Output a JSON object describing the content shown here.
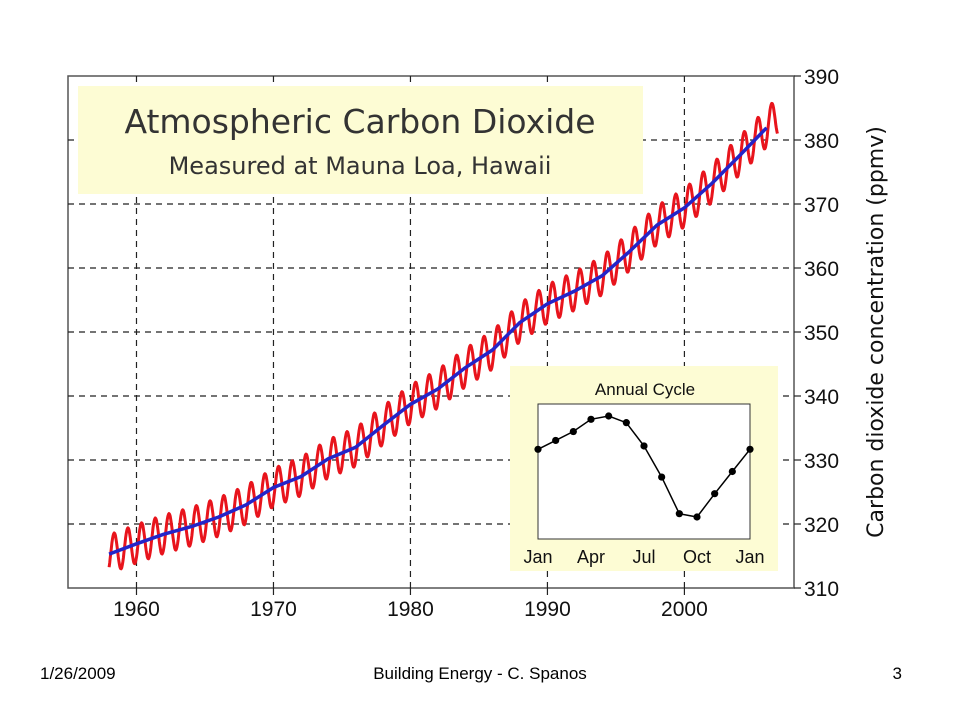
{
  "footer": {
    "date": "1/26/2009",
    "center": "Building Energy - C. Spanos",
    "page": "3"
  },
  "chart_data": [
    {
      "type": "line",
      "title": "Atmospheric Carbon Dioxide",
      "subtitle": "Measured at Mauna Loa, Hawaii",
      "xlabel": "",
      "ylabel": "Carbon dioxide concentration (ppmv)",
      "xlim": [
        1955,
        2008
      ],
      "ylim": [
        310,
        390
      ],
      "x_ticks": [
        "1960",
        "1970",
        "1980",
        "1990",
        "2000"
      ],
      "y_ticks": [
        "310",
        "320",
        "330",
        "340",
        "350",
        "360",
        "370",
        "380",
        "390"
      ],
      "grid": true,
      "colors": {
        "monthly": "#e8141c",
        "annual": "#2424c8",
        "title_box": "#fdfcd4"
      },
      "series": [
        {
          "x": [
            1958,
            1960,
            1962,
            1964,
            1966,
            1968,
            1970,
            1972,
            1974,
            1976,
            1978,
            1980,
            1982,
            1984,
            1986,
            1988,
            1990,
            1992,
            1994,
            1996,
            1998,
            2000,
            2002,
            2004,
            2006
          ],
          "values": [
            315.3,
            316.9,
            318.4,
            319.6,
            321.1,
            323.0,
            325.7,
            327.4,
            330.2,
            332.0,
            335.4,
            338.7,
            341.1,
            344.4,
            347.2,
            351.5,
            354.4,
            356.4,
            358.8,
            362.6,
            366.7,
            369.4,
            373.2,
            377.5,
            381.9
          ],
          "seasonal_amplitude": 3
        }
      ]
    },
    {
      "type": "line",
      "title": "Annual Cycle",
      "categories": [
        "Jan",
        "Apr",
        "Jul",
        "Oct",
        "Jan"
      ],
      "points": [
        0.7,
        0.78,
        0.86,
        0.97,
        1.0,
        0.94,
        0.73,
        0.45,
        0.12,
        0.09,
        0.3,
        0.5,
        0.7
      ],
      "colors": {
        "background": "#fdfcd4",
        "line": "#000000"
      }
    }
  ]
}
